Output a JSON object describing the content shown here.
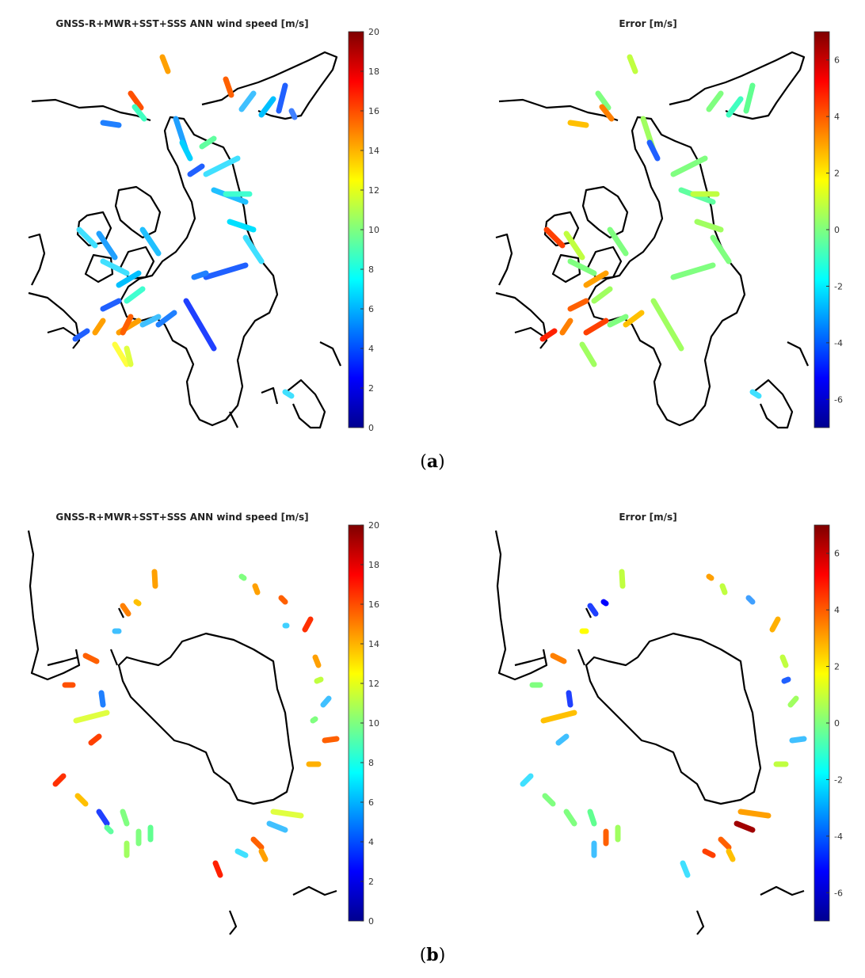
{
  "panels": [
    {
      "id": "a-left",
      "title": "GNSS-R+MWR+SST+SSS ANN wind speed [m/s]",
      "colorbar": {
        "min": 0,
        "max": 20,
        "ticks": [
          "0",
          "2",
          "4",
          "6",
          "8",
          "10",
          "12",
          "14",
          "16",
          "18",
          "20"
        ]
      },
      "map": "arctic"
    },
    {
      "id": "a-right",
      "title": "Error [m/s]",
      "colorbar": {
        "min": -7,
        "max": 7,
        "ticks": [
          "-6",
          "-4",
          "-2",
          "0",
          "2",
          "4",
          "6"
        ]
      },
      "map": "arctic"
    },
    {
      "id": "b-left",
      "title": "GNSS-R+MWR+SST+SSS ANN wind speed [m/s]",
      "colorbar": {
        "min": 0,
        "max": 20,
        "ticks": [
          "0",
          "2",
          "4",
          "6",
          "8",
          "10",
          "12",
          "14",
          "16",
          "18",
          "20"
        ]
      },
      "map": "antarctic"
    },
    {
      "id": "b-right",
      "title": "Error [m/s]",
      "colorbar": {
        "min": -7,
        "max": 7,
        "ticks": [
          "-6",
          "-4",
          "-2",
          "0",
          "2",
          "4",
          "6"
        ]
      },
      "map": "antarctic"
    }
  ],
  "captions": {
    "a": "a",
    "b": "b"
  },
  "colormap": "jet"
}
